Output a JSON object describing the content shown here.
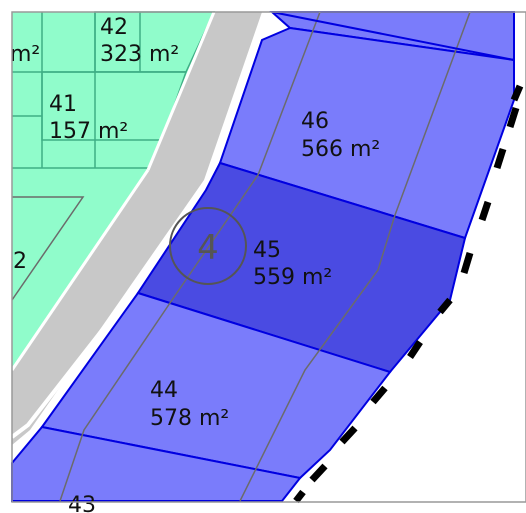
{
  "colors": {
    "background": "#ffffff",
    "road": "#c8c8c8",
    "green_lot_fill": "#90fccb",
    "green_lot_border": "#3fae85",
    "blue_lot_fill": "#7a7cfb",
    "selected_lot_fill": "#4a4be2",
    "blue_lot_border": "#0000e0",
    "interior_line": "#6b6b6b",
    "boundary_dash": "#000000"
  },
  "sector": {
    "label": "4"
  },
  "lots": [
    {
      "id": "46",
      "number": "46",
      "area": "566 m²",
      "group": "blue",
      "selected": false
    },
    {
      "id": "45",
      "number": "45",
      "area": "559 m²",
      "group": "blue",
      "selected": true
    },
    {
      "id": "44",
      "number": "44",
      "area": "578 m²",
      "group": "blue",
      "selected": false
    },
    {
      "id": "43",
      "number": "43",
      "area": "",
      "group": "blue",
      "selected": false
    },
    {
      "id": "42",
      "number": "42",
      "area": "323 m²",
      "group": "green",
      "selected": false
    },
    {
      "id": "41",
      "number": "41",
      "area": "157 m²",
      "group": "green",
      "selected": false
    },
    {
      "id": "partial-upper-left",
      "number": "",
      "area": "m²",
      "group": "green",
      "selected": false
    },
    {
      "id": "partial-left",
      "number": "",
      "area": "2",
      "group": "green",
      "selected": false
    }
  ]
}
